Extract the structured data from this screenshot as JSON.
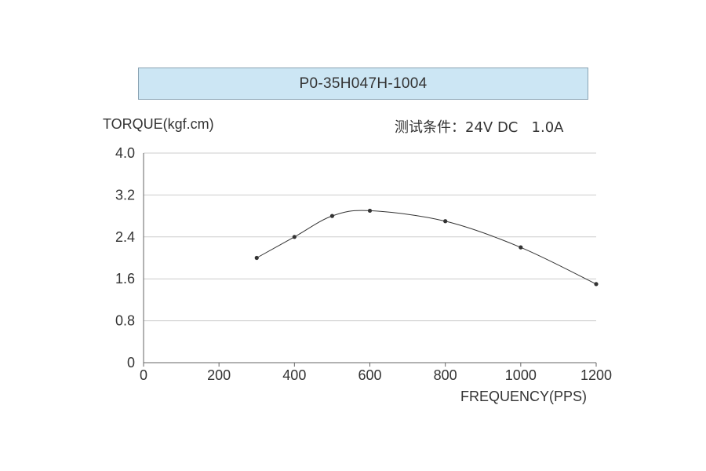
{
  "header": {
    "model": "P0-35H047H-1004"
  },
  "test_conditions": "测试条件：24V DC   1.0A",
  "chart_data": {
    "type": "line",
    "title": "P0-35H047H-1004",
    "ylabel": "TORQUE(kgf.cm)",
    "xlabel": "FREQUENCY(PPS)",
    "xlim": [
      0,
      1200
    ],
    "ylim": [
      0,
      4.0
    ],
    "xticks": [
      0,
      200,
      400,
      600,
      800,
      1000,
      1200
    ],
    "yticks": [
      "0",
      "0.8",
      "1.6",
      "2.4",
      "3.2",
      "4.0"
    ],
    "ytick_values": [
      0,
      0.8,
      1.6,
      2.4,
      3.2,
      4.0
    ],
    "grid": true,
    "series": [
      {
        "x": [
          300,
          400,
          500,
          600,
          800,
          1000,
          1200
        ],
        "y": [
          2.0,
          2.4,
          2.8,
          2.9,
          2.7,
          2.2,
          1.5
        ]
      }
    ],
    "line_color": "#333333",
    "grid_color": "#cccccc"
  }
}
